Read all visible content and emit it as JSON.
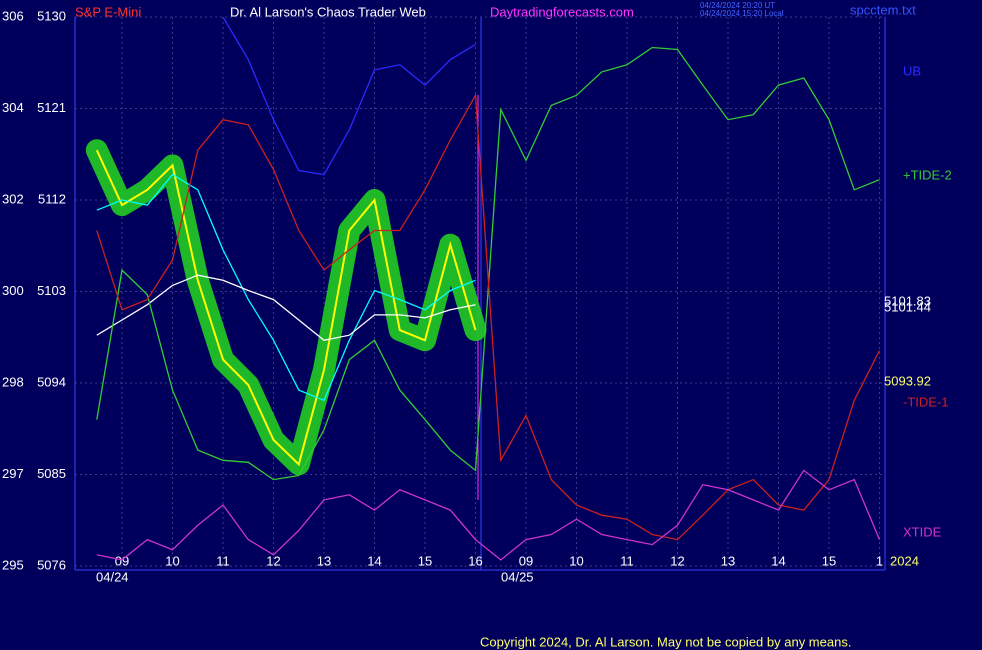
{
  "chart_data": {
    "type": "line",
    "header": {
      "symbol": "S&P E-Mini",
      "title": "Dr. Al Larson's Chaos Trader Web",
      "site": "Daytradingforecasts.com",
      "time_ut": "04/24/2024 20:20 UT",
      "time_local": "04/24/2024 15:20 Local",
      "file": "spcctem.txt"
    },
    "footer": "Copyright 2024, Dr. Al Larson. May not be copied by any means.",
    "categories": [
      null,
      "09",
      null,
      "10",
      null,
      "11",
      null,
      "12",
      null,
      "13",
      null,
      "14",
      null,
      "15",
      null,
      "16",
      null,
      "09",
      null,
      "10",
      null,
      "11",
      null,
      "12",
      null,
      "13",
      null,
      "14",
      null,
      "15",
      null,
      "1"
    ],
    "date_labels": [
      "04/24",
      "04/25"
    ],
    "year_label": "2024",
    "ylim": [
      5076,
      5130
    ],
    "yticks": [
      5130,
      5121,
      5112,
      5103,
      5094,
      5085,
      5076
    ],
    "left_scale_labels": [
      "306",
      "304",
      "302",
      "300",
      "298",
      "297",
      "295"
    ],
    "price_labels": [
      "5101.83",
      "5101.44",
      "5093.92"
    ],
    "grid": true,
    "series": [
      {
        "color": "#ffff00",
        "band": true,
        "values": [
          5116.9,
          5111.5,
          5113.0,
          5115.4,
          5104.1,
          5096.3,
          5093.8,
          5088.4,
          5086.0,
          5095.3,
          5109.0,
          5112.0,
          5099.2,
          5098.2,
          5107.6,
          5099.2,
          null,
          null,
          null,
          null,
          null,
          null,
          null,
          null,
          null,
          null,
          null,
          null,
          null,
          null,
          null,
          null
        ]
      },
      {
        "color": "#00ffff",
        "values": [
          5111.0,
          5112.0,
          5111.5,
          5114.5,
          5113.0,
          5107.1,
          5102.2,
          5098.2,
          5093.3,
          5092.3,
          5098.2,
          5103.1,
          5102.2,
          5101.2,
          5103.1,
          5104.1,
          null,
          null,
          null,
          null,
          null,
          null,
          null,
          null,
          null,
          null,
          null,
          null,
          null,
          null,
          null,
          null
        ]
      },
      {
        "color": "#ffffff",
        "values": [
          5098.7,
          5100.2,
          5101.7,
          5103.6,
          5104.6,
          5104.1,
          5103.1,
          5102.2,
          5100.2,
          5098.2,
          5098.7,
          5100.7,
          5100.7,
          5100.4,
          5101.2,
          5101.7,
          null,
          null,
          null,
          null,
          null,
          null,
          null,
          null,
          null,
          null,
          null,
          null,
          null,
          null,
          null,
          null
        ]
      },
      {
        "name": "UB",
        "color": "#2a2aff",
        "values": [
          null,
          null,
          null,
          null,
          null,
          5130,
          5125.8,
          5119.9,
          5114.9,
          5114.5,
          5118.9,
          5124.8,
          5125.3,
          5123.3,
          5125.8,
          5127.3,
          null,
          null,
          null,
          null,
          null,
          null,
          null,
          null,
          null,
          null,
          null,
          null,
          null,
          null,
          null,
          null
        ]
      },
      {
        "name": "+TIDE-2",
        "color": "#33cc33",
        "values": [
          5090.4,
          5105.1,
          5102.7,
          5093.3,
          5087.4,
          5086.4,
          5086.2,
          5084.5,
          5084.9,
          5089.4,
          5096.3,
          5098.2,
          5093.3,
          5090.4,
          5087.4,
          5085.4,
          5120.9,
          5115.9,
          5121.3,
          5122.3,
          5124.6,
          5125.3,
          5127.0,
          5126.8,
          5123.3,
          5119.9,
          5120.4,
          5123.3,
          5124.0,
          5119.9,
          5113.0,
          5114.0
        ]
      },
      {
        "name": "-TIDE-1",
        "color": "#cc2020",
        "values": [
          5109.0,
          5101.2,
          5102.2,
          5106.1,
          5116.9,
          5119.9,
          5119.4,
          5115.0,
          5109.0,
          5105.1,
          5107.1,
          5109.0,
          5109.0,
          5113.0,
          5117.9,
          5122.3,
          5086.4,
          5090.8,
          5084.5,
          5082.0,
          5081.0,
          5080.6,
          5079.1,
          5078.6,
          5081.0,
          5083.5,
          5084.5,
          5082.0,
          5081.5,
          5084.5,
          5092.3,
          5097.2
        ]
      },
      {
        "name": "XTIDE",
        "color": "#cc33cc",
        "values": [
          5077.1,
          5076.6,
          5078.6,
          5077.6,
          5080.0,
          5082.0,
          5078.6,
          5077.1,
          5079.5,
          5082.5,
          5083.0,
          5081.5,
          5083.5,
          5082.5,
          5081.5,
          5078.6,
          5076.6,
          5078.6,
          5079.1,
          5080.6,
          5079.1,
          5078.6,
          5078.1,
          5080.0,
          5084.0,
          5083.5,
          5082.5,
          5081.5,
          5085.4,
          5083.5,
          5084.5,
          5078.6
        ]
      }
    ]
  }
}
